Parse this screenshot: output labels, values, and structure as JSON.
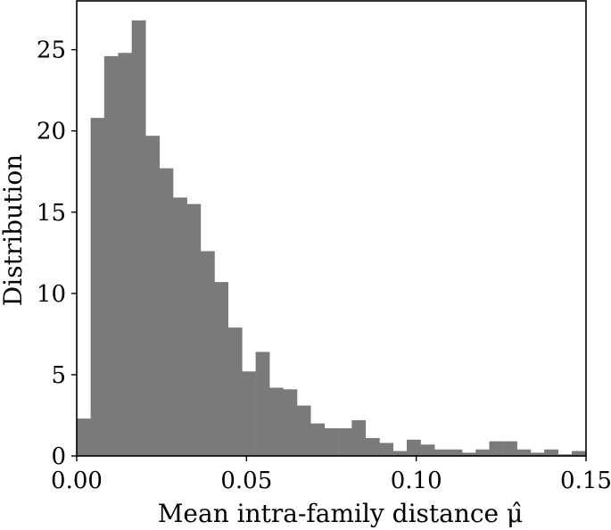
{
  "chart_data": {
    "type": "bar",
    "title": "",
    "xlabel": "Mean intra-family distance μ̂",
    "ylabel": "Distribution",
    "xlim": [
      0.0,
      0.15
    ],
    "ylim": [
      0,
      28
    ],
    "bin_width": 0.00405,
    "x_ticks": [
      "0.00",
      "0.05",
      "0.10",
      "0.15"
    ],
    "y_ticks": [
      "0",
      "5",
      "10",
      "15",
      "20",
      "25"
    ],
    "bar_color": "#7a7a7a",
    "grid": false,
    "legend": "none",
    "bins": [
      {
        "x0": 0.0,
        "value": 2.3
      },
      {
        "x0": 0.0041,
        "value": 20.8
      },
      {
        "x0": 0.0081,
        "value": 24.6
      },
      {
        "x0": 0.0122,
        "value": 24.8
      },
      {
        "x0": 0.0162,
        "value": 26.8
      },
      {
        "x0": 0.0203,
        "value": 19.7
      },
      {
        "x0": 0.0243,
        "value": 17.7
      },
      {
        "x0": 0.0284,
        "value": 15.9
      },
      {
        "x0": 0.0324,
        "value": 15.5
      },
      {
        "x0": 0.0365,
        "value": 12.6
      },
      {
        "x0": 0.0405,
        "value": 10.7
      },
      {
        "x0": 0.0446,
        "value": 7.9
      },
      {
        "x0": 0.0486,
        "value": 5.2
      },
      {
        "x0": 0.0527,
        "value": 6.4
      },
      {
        "x0": 0.0567,
        "value": 4.2
      },
      {
        "x0": 0.0608,
        "value": 4.1
      },
      {
        "x0": 0.0648,
        "value": 3.1
      },
      {
        "x0": 0.0689,
        "value": 2.0
      },
      {
        "x0": 0.0729,
        "value": 1.7
      },
      {
        "x0": 0.077,
        "value": 1.7
      },
      {
        "x0": 0.081,
        "value": 2.2
      },
      {
        "x0": 0.0851,
        "value": 1.1
      },
      {
        "x0": 0.0891,
        "value": 0.8
      },
      {
        "x0": 0.0932,
        "value": 0.3
      },
      {
        "x0": 0.0972,
        "value": 1.0
      },
      {
        "x0": 0.1013,
        "value": 0.7
      },
      {
        "x0": 0.1053,
        "value": 0.4
      },
      {
        "x0": 0.1094,
        "value": 0.4
      },
      {
        "x0": 0.1134,
        "value": 0.2
      },
      {
        "x0": 0.1175,
        "value": 0.4
      },
      {
        "x0": 0.1215,
        "value": 0.9
      },
      {
        "x0": 0.1256,
        "value": 0.9
      },
      {
        "x0": 0.1296,
        "value": 0.4
      },
      {
        "x0": 0.1337,
        "value": 0.2
      },
      {
        "x0": 0.1377,
        "value": 0.4
      },
      {
        "x0": 0.1418,
        "value": 0.1
      },
      {
        "x0": 0.1458,
        "value": 0.3
      }
    ]
  }
}
